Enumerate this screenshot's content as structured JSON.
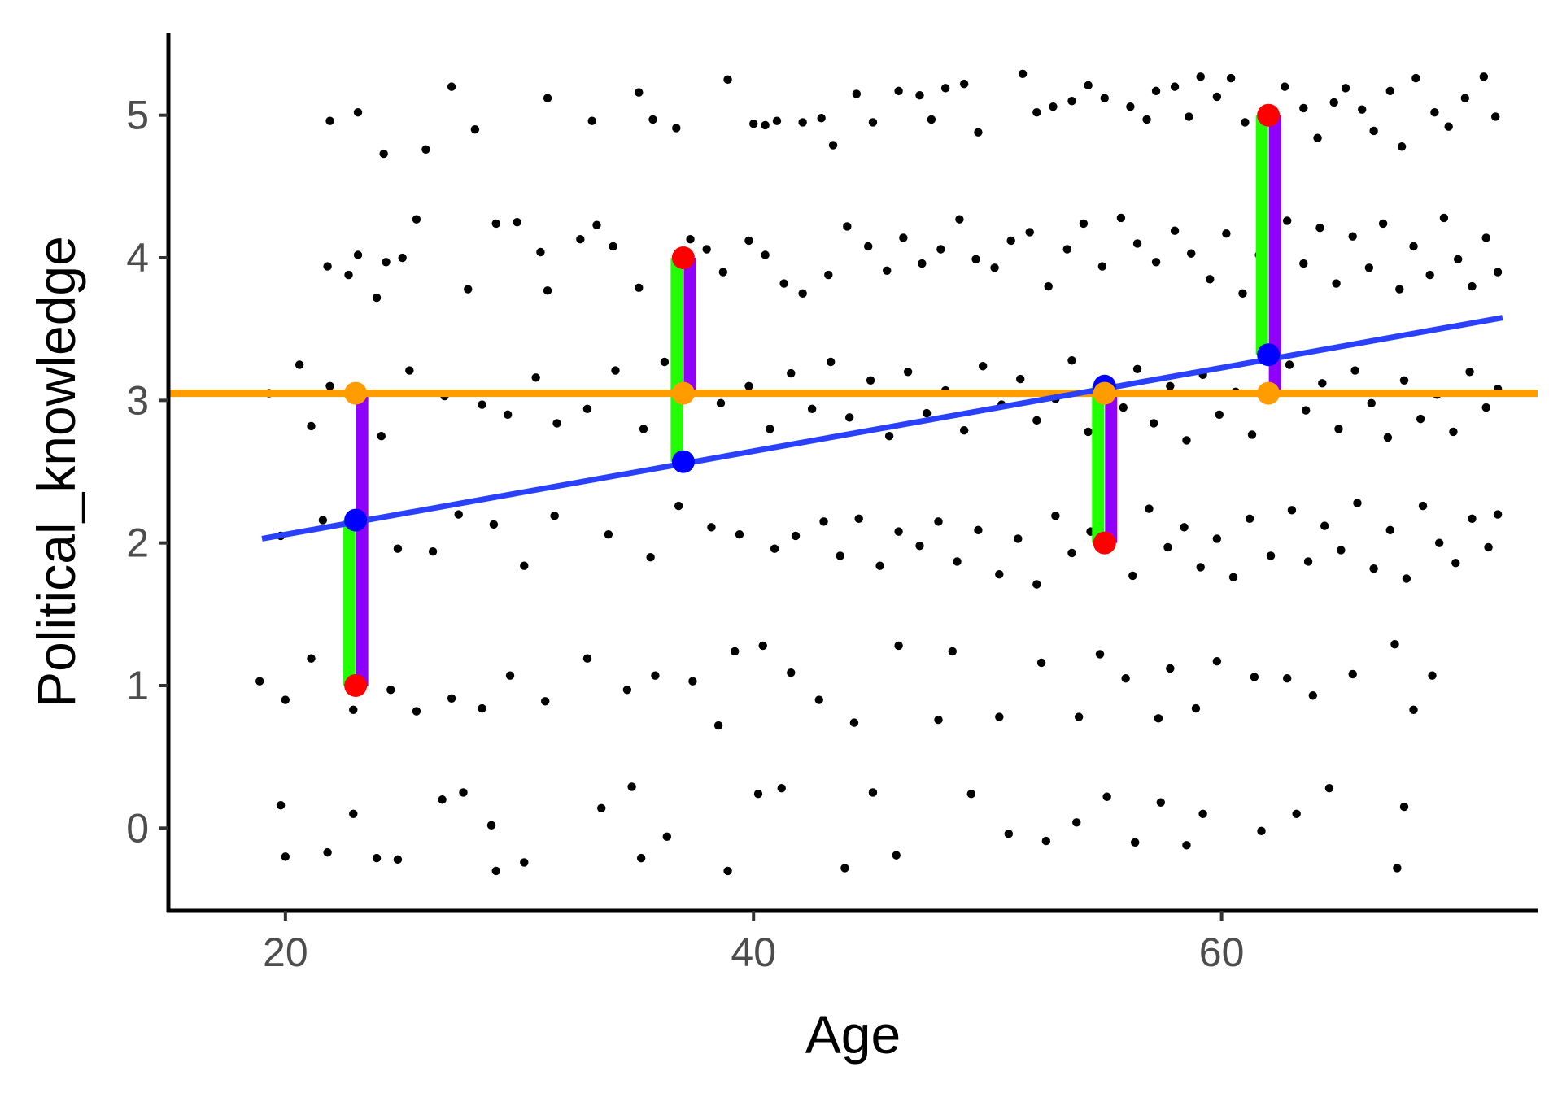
{
  "chart_data": {
    "type": "scatter",
    "title": "",
    "xlabel": "Age",
    "ylabel": "Political_knowledge",
    "xlim": [
      15,
      73.5
    ],
    "ylim": [
      -0.58,
      5.58
    ],
    "x_ticks": [
      "20",
      "40",
      "60"
    ],
    "y_ticks": [
      "0",
      "1",
      "2",
      "3",
      "4",
      "5"
    ],
    "grid": false,
    "legend": "none",
    "jittered_points": [
      [
        21.9,
        4.96
      ],
      [
        23.1,
        5.02
      ],
      [
        24.2,
        4.73
      ],
      [
        26.0,
        4.76
      ],
      [
        27.1,
        5.2
      ],
      [
        28.1,
        4.9
      ],
      [
        31.2,
        5.12
      ],
      [
        33.1,
        4.96
      ],
      [
        35.1,
        5.16
      ],
      [
        35.7,
        4.97
      ],
      [
        36.7,
        4.91
      ],
      [
        38.9,
        5.25
      ],
      [
        40.0,
        4.94
      ],
      [
        40.5,
        4.93
      ],
      [
        41.0,
        4.96
      ],
      [
        42.1,
        4.95
      ],
      [
        42.9,
        4.98
      ],
      [
        43.4,
        4.79
      ],
      [
        44.4,
        5.15
      ],
      [
        45.1,
        4.95
      ],
      [
        46.2,
        5.17
      ],
      [
        47.1,
        5.14
      ],
      [
        47.6,
        4.97
      ],
      [
        48.2,
        5.19
      ],
      [
        49.0,
        5.22
      ],
      [
        49.6,
        4.88
      ],
      [
        51.5,
        5.29
      ],
      [
        52.1,
        5.02
      ],
      [
        52.8,
        5.06
      ],
      [
        53.6,
        5.1
      ],
      [
        54.3,
        5.21
      ],
      [
        55.0,
        5.12
      ],
      [
        56.1,
        5.06
      ],
      [
        56.8,
        4.97
      ],
      [
        57.2,
        5.17
      ],
      [
        58.0,
        5.2
      ],
      [
        58.6,
        4.99
      ],
      [
        59.1,
        5.27
      ],
      [
        59.8,
        5.13
      ],
      [
        60.4,
        5.26
      ],
      [
        61.0,
        4.95
      ],
      [
        62.7,
        5.2
      ],
      [
        63.5,
        5.05
      ],
      [
        64.1,
        4.84
      ],
      [
        64.8,
        5.09
      ],
      [
        65.3,
        5.19
      ],
      [
        66.0,
        5.04
      ],
      [
        66.5,
        4.89
      ],
      [
        67.2,
        5.17
      ],
      [
        67.7,
        4.78
      ],
      [
        68.3,
        5.26
      ],
      [
        69.1,
        5.02
      ],
      [
        69.7,
        4.92
      ],
      [
        70.4,
        5.12
      ],
      [
        71.2,
        5.27
      ],
      [
        71.7,
        4.99
      ],
      [
        21.8,
        3.94
      ],
      [
        22.7,
        3.88
      ],
      [
        23.1,
        4.02
      ],
      [
        23.9,
        3.72
      ],
      [
        24.3,
        3.97
      ],
      [
        25.0,
        4.0
      ],
      [
        25.6,
        4.27
      ],
      [
        27.8,
        3.78
      ],
      [
        29.0,
        4.24
      ],
      [
        29.9,
        4.25
      ],
      [
        30.9,
        4.04
      ],
      [
        31.2,
        3.77
      ],
      [
        32.6,
        4.13
      ],
      [
        33.3,
        4.23
      ],
      [
        34.0,
        4.08
      ],
      [
        35.1,
        3.79
      ],
      [
        37.3,
        4.13
      ],
      [
        38.0,
        4.06
      ],
      [
        38.7,
        3.9
      ],
      [
        39.8,
        4.12
      ],
      [
        40.5,
        4.02
      ],
      [
        41.3,
        3.82
      ],
      [
        42.1,
        3.75
      ],
      [
        43.2,
        3.88
      ],
      [
        44.0,
        4.22
      ],
      [
        44.9,
        4.08
      ],
      [
        45.7,
        3.91
      ],
      [
        46.4,
        4.14
      ],
      [
        47.2,
        3.96
      ],
      [
        48.0,
        4.06
      ],
      [
        48.8,
        4.27
      ],
      [
        49.5,
        3.99
      ],
      [
        50.3,
        3.93
      ],
      [
        51.0,
        4.12
      ],
      [
        51.8,
        4.18
      ],
      [
        52.6,
        3.8
      ],
      [
        53.4,
        4.06
      ],
      [
        54.1,
        4.24
      ],
      [
        54.9,
        3.94
      ],
      [
        55.7,
        4.28
      ],
      [
        56.4,
        4.1
      ],
      [
        57.2,
        3.97
      ],
      [
        58.0,
        4.19
      ],
      [
        58.7,
        4.03
      ],
      [
        59.5,
        3.85
      ],
      [
        60.2,
        4.17
      ],
      [
        60.9,
        3.75
      ],
      [
        61.6,
        4.02
      ],
      [
        62.8,
        4.26
      ],
      [
        63.5,
        3.96
      ],
      [
        64.2,
        4.21
      ],
      [
        64.9,
        3.82
      ],
      [
        65.6,
        4.15
      ],
      [
        66.3,
        3.93
      ],
      [
        66.9,
        4.24
      ],
      [
        67.6,
        3.78
      ],
      [
        68.2,
        4.08
      ],
      [
        68.9,
        3.88
      ],
      [
        69.5,
        4.28
      ],
      [
        70.1,
        3.99
      ],
      [
        70.7,
        3.8
      ],
      [
        71.3,
        4.14
      ],
      [
        71.8,
        3.9
      ],
      [
        19.3,
        3.05
      ],
      [
        20.6,
        3.25
      ],
      [
        21.1,
        2.82
      ],
      [
        21.9,
        3.1
      ],
      [
        23.3,
        3.0
      ],
      [
        24.1,
        2.75
      ],
      [
        25.3,
        3.21
      ],
      [
        26.8,
        3.03
      ],
      [
        28.4,
        2.97
      ],
      [
        29.5,
        2.9
      ],
      [
        30.7,
        3.16
      ],
      [
        31.6,
        2.84
      ],
      [
        32.9,
        2.94
      ],
      [
        34.1,
        3.21
      ],
      [
        35.3,
        2.8
      ],
      [
        36.2,
        3.27
      ],
      [
        38.6,
        2.98
      ],
      [
        39.8,
        3.1
      ],
      [
        40.7,
        2.8
      ],
      [
        41.6,
        3.19
      ],
      [
        42.5,
        2.94
      ],
      [
        43.3,
        3.27
      ],
      [
        44.1,
        2.88
      ],
      [
        45.0,
        3.14
      ],
      [
        45.8,
        2.75
      ],
      [
        46.6,
        3.2
      ],
      [
        47.4,
        2.91
      ],
      [
        48.2,
        3.07
      ],
      [
        49.0,
        2.79
      ],
      [
        49.8,
        3.24
      ],
      [
        50.6,
        2.97
      ],
      [
        51.4,
        3.15
      ],
      [
        52.1,
        2.86
      ],
      [
        52.9,
        3.01
      ],
      [
        53.6,
        3.28
      ],
      [
        54.3,
        2.78
      ],
      [
        55.8,
        2.95
      ],
      [
        56.4,
        3.22
      ],
      [
        57.1,
        2.84
      ],
      [
        57.8,
        3.1
      ],
      [
        58.5,
        2.72
      ],
      [
        59.2,
        3.18
      ],
      [
        59.9,
        2.9
      ],
      [
        60.6,
        3.06
      ],
      [
        61.3,
        2.76
      ],
      [
        62.9,
        3.25
      ],
      [
        63.6,
        2.93
      ],
      [
        64.3,
        3.12
      ],
      [
        65.0,
        2.8
      ],
      [
        65.7,
        3.21
      ],
      [
        66.4,
        2.98
      ],
      [
        67.1,
        2.74
      ],
      [
        67.8,
        3.14
      ],
      [
        68.5,
        2.87
      ],
      [
        69.2,
        3.04
      ],
      [
        69.9,
        2.78
      ],
      [
        70.6,
        3.2
      ],
      [
        71.3,
        2.95
      ],
      [
        71.8,
        3.08
      ],
      [
        19.8,
        2.05
      ],
      [
        21.6,
        2.16
      ],
      [
        24.8,
        1.96
      ],
      [
        26.3,
        1.94
      ],
      [
        27.4,
        2.2
      ],
      [
        28.9,
        2.13
      ],
      [
        30.2,
        1.84
      ],
      [
        31.5,
        2.19
      ],
      [
        33.8,
        2.06
      ],
      [
        35.6,
        1.9
      ],
      [
        36.8,
        2.26
      ],
      [
        38.2,
        2.11
      ],
      [
        39.4,
        2.06
      ],
      [
        40.9,
        1.96
      ],
      [
        41.8,
        2.05
      ],
      [
        43.0,
        2.15
      ],
      [
        43.7,
        1.91
      ],
      [
        44.5,
        2.17
      ],
      [
        45.4,
        1.84
      ],
      [
        46.2,
        2.08
      ],
      [
        47.1,
        1.98
      ],
      [
        47.9,
        2.15
      ],
      [
        48.7,
        1.87
      ],
      [
        49.6,
        2.09
      ],
      [
        50.5,
        1.78
      ],
      [
        51.3,
        2.03
      ],
      [
        52.1,
        1.71
      ],
      [
        52.9,
        2.19
      ],
      [
        53.6,
        1.93
      ],
      [
        54.4,
        2.08
      ],
      [
        56.2,
        1.77
      ],
      [
        56.9,
        2.24
      ],
      [
        57.7,
        1.97
      ],
      [
        58.4,
        2.11
      ],
      [
        59.1,
        1.83
      ],
      [
        59.8,
        2.03
      ],
      [
        60.5,
        1.76
      ],
      [
        61.2,
        2.17
      ],
      [
        62.1,
        1.91
      ],
      [
        63.0,
        2.23
      ],
      [
        63.7,
        1.87
      ],
      [
        64.4,
        2.12
      ],
      [
        65.1,
        1.95
      ],
      [
        65.8,
        2.28
      ],
      [
        66.5,
        1.82
      ],
      [
        67.2,
        2.09
      ],
      [
        67.9,
        1.75
      ],
      [
        68.6,
        2.26
      ],
      [
        69.3,
        2.0
      ],
      [
        70.0,
        1.86
      ],
      [
        70.7,
        2.17
      ],
      [
        71.4,
        1.97
      ],
      [
        71.8,
        2.2
      ],
      [
        18.9,
        1.03
      ],
      [
        20.0,
        0.9
      ],
      [
        21.1,
        1.19
      ],
      [
        22.9,
        0.83
      ],
      [
        24.5,
        0.97
      ],
      [
        25.6,
        0.82
      ],
      [
        27.1,
        0.91
      ],
      [
        28.4,
        0.84
      ],
      [
        29.6,
        1.07
      ],
      [
        31.1,
        0.89
      ],
      [
        32.9,
        1.19
      ],
      [
        34.6,
        0.97
      ],
      [
        35.8,
        1.07
      ],
      [
        37.4,
        1.03
      ],
      [
        38.5,
        0.72
      ],
      [
        39.2,
        1.24
      ],
      [
        40.4,
        1.28
      ],
      [
        41.6,
        1.09
      ],
      [
        42.8,
        0.9
      ],
      [
        44.3,
        0.74
      ],
      [
        46.2,
        1.28
      ],
      [
        47.9,
        0.76
      ],
      [
        48.5,
        1.24
      ],
      [
        50.5,
        0.78
      ],
      [
        52.3,
        1.16
      ],
      [
        53.9,
        0.78
      ],
      [
        54.8,
        1.22
      ],
      [
        55.9,
        1.05
      ],
      [
        57.3,
        0.77
      ],
      [
        57.8,
        1.12
      ],
      [
        58.9,
        0.84
      ],
      [
        59.8,
        1.17
      ],
      [
        61.4,
        1.06
      ],
      [
        62.8,
        1.05
      ],
      [
        63.9,
        0.93
      ],
      [
        65.6,
        1.08
      ],
      [
        67.4,
        1.29
      ],
      [
        68.2,
        0.83
      ],
      [
        69.0,
        1.07
      ],
      [
        19.8,
        0.16
      ],
      [
        20.0,
        -0.2
      ],
      [
        21.8,
        -0.17
      ],
      [
        22.9,
        0.1
      ],
      [
        23.9,
        -0.21
      ],
      [
        24.8,
        -0.22
      ],
      [
        26.7,
        0.2
      ],
      [
        27.6,
        0.25
      ],
      [
        28.8,
        0.02
      ],
      [
        29.0,
        -0.3
      ],
      [
        30.2,
        -0.24
      ],
      [
        33.5,
        0.14
      ],
      [
        34.8,
        0.29
      ],
      [
        35.2,
        -0.21
      ],
      [
        36.3,
        -0.06
      ],
      [
        38.9,
        -0.3
      ],
      [
        40.2,
        0.24
      ],
      [
        41.2,
        0.28
      ],
      [
        43.9,
        -0.28
      ],
      [
        45.1,
        0.25
      ],
      [
        46.1,
        -0.19
      ],
      [
        49.3,
        0.24
      ],
      [
        50.9,
        -0.04
      ],
      [
        52.5,
        -0.09
      ],
      [
        53.8,
        0.04
      ],
      [
        55.1,
        0.22
      ],
      [
        56.3,
        -0.1
      ],
      [
        57.4,
        0.18
      ],
      [
        58.5,
        -0.12
      ],
      [
        59.2,
        0.1
      ],
      [
        61.7,
        -0.02
      ],
      [
        63.2,
        0.1
      ],
      [
        64.6,
        0.28
      ],
      [
        67.5,
        -0.28
      ],
      [
        67.8,
        0.15
      ]
    ],
    "regression_line": {
      "x": [
        19.0,
        72.0
      ],
      "y": [
        2.03,
        3.58
      ],
      "color": "#2941ff"
    },
    "mean_line": {
      "y": 3.05,
      "color": "#ff9d00"
    },
    "highlighted_points": [
      {
        "x": 23.0,
        "observed": 1,
        "fitted": 2.16,
        "mean": 3.05
      },
      {
        "x": 37.0,
        "observed": 4,
        "fitted": 2.57,
        "mean": 3.05
      },
      {
        "x": 55.0,
        "observed": 2,
        "fitted": 3.1,
        "mean": 3.05
      },
      {
        "x": 62.0,
        "observed": 5,
        "fitted": 3.32,
        "mean": 3.05
      }
    ],
    "colors": {
      "points": "#000000",
      "observed": "#ff0000",
      "fitted": "#0000ff",
      "mean": "#ff9d00",
      "residual_segment": "#22ff00",
      "total_deviation_segment": "#8f00ff"
    }
  }
}
